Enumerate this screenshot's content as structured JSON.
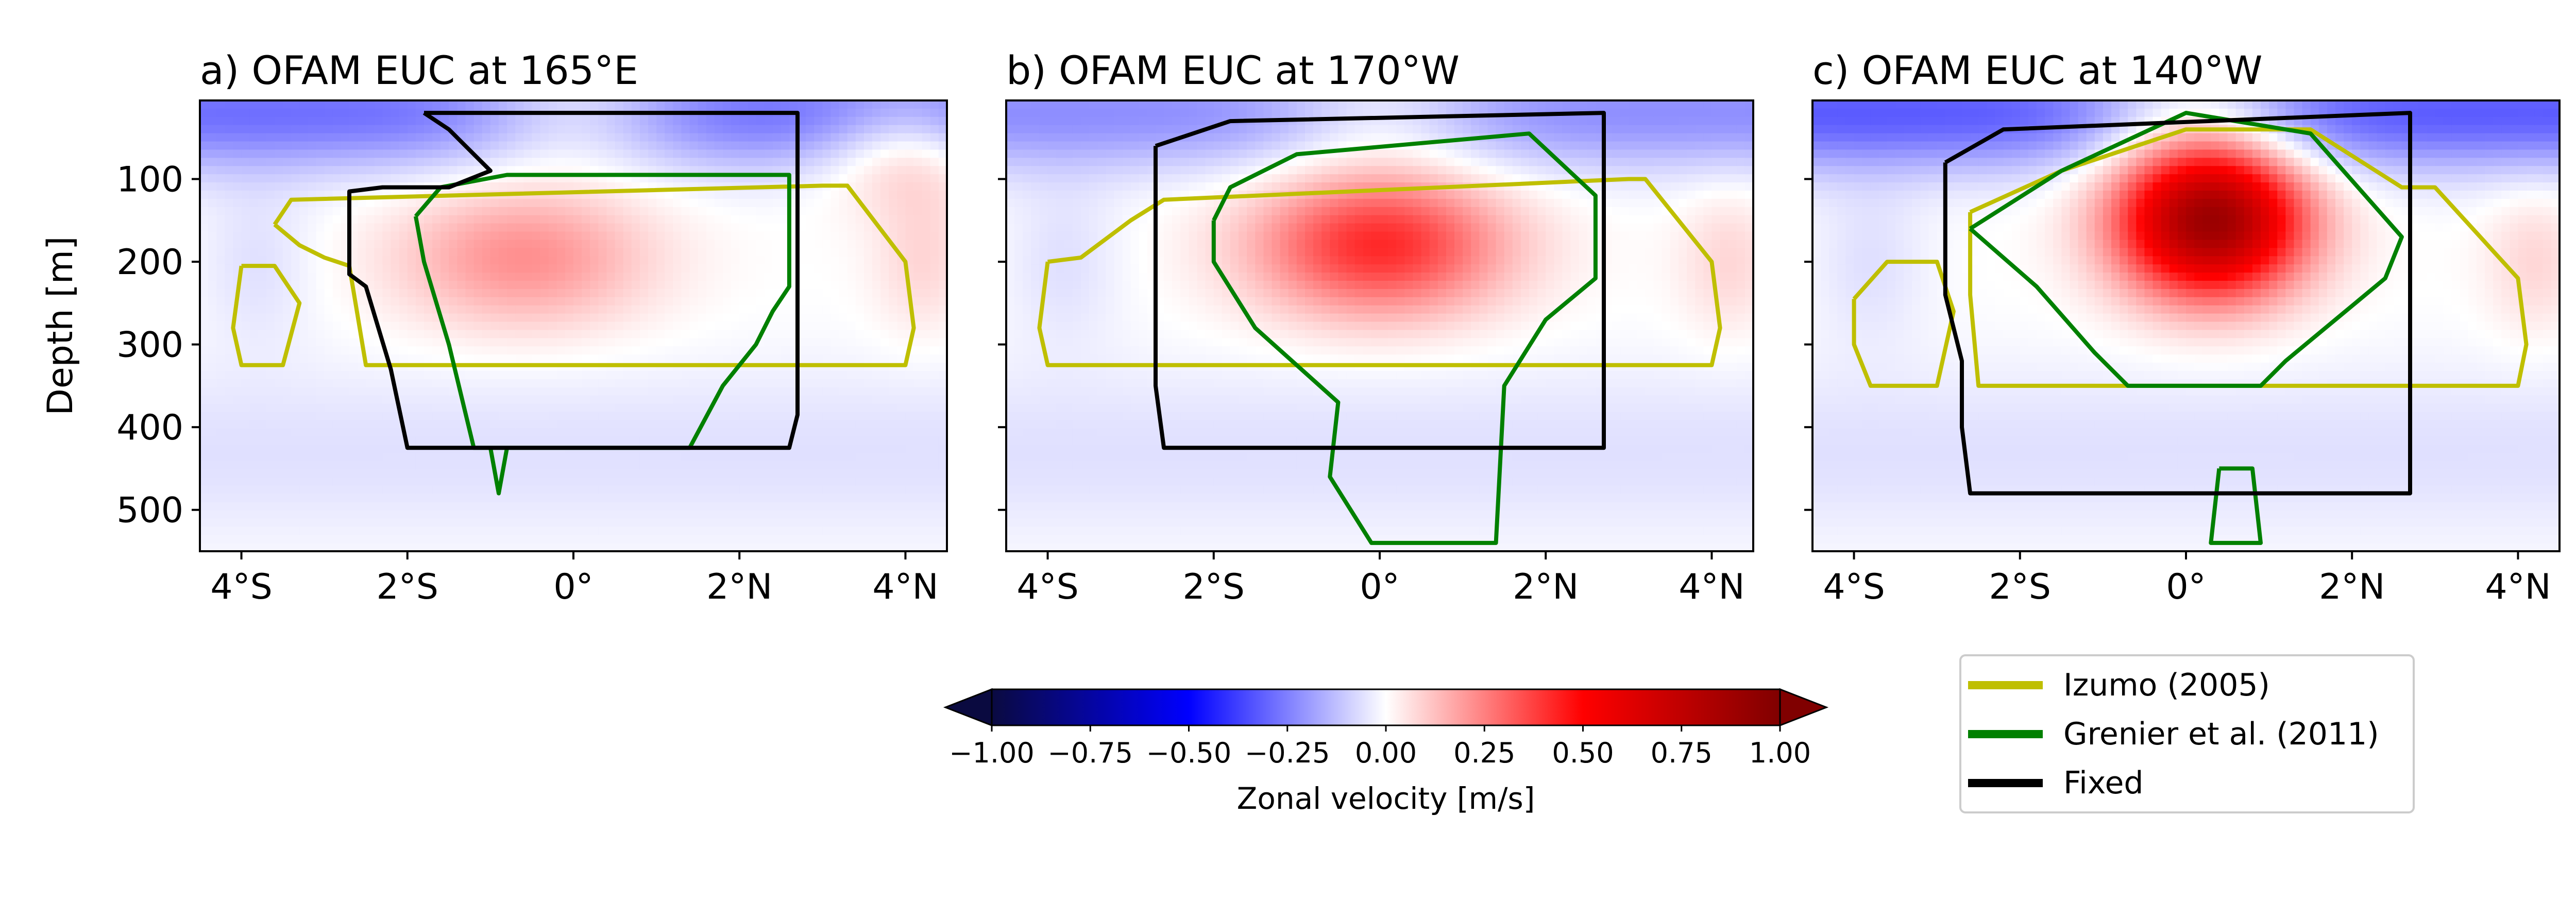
{
  "chart_data": [
    {
      "type": "heatmap",
      "title": "a) OFAM EUC at 165°E",
      "ylabel": "Depth [m]",
      "xlim": [
        -4.5,
        4.5
      ],
      "ylim": [
        550,
        5
      ],
      "xticks": [
        -4,
        -2,
        0,
        2,
        4
      ],
      "xtick_labels": [
        "4°S",
        "2°S",
        "0°",
        "2°N",
        "4°N"
      ],
      "yticks": [
        100,
        200,
        300,
        400,
        500
      ],
      "ytick_labels": [
        "100",
        "200",
        "300",
        "400",
        "500"
      ],
      "core": {
        "lat": -0.6,
        "depth": 195,
        "u_max": 0.22
      },
      "contours": {
        "izumo": [
          [
            -4,
            205
          ],
          [
            -3.6,
            205
          ],
          [
            -3.3,
            250
          ],
          [
            -3.5,
            325
          ],
          [
            -4,
            325
          ],
          [
            -4.1,
            280
          ],
          [
            -4,
            205
          ]
        ],
        "izumo_main": [
          [
            -3.6,
            155
          ],
          [
            -3.4,
            125
          ],
          [
            3,
            108
          ],
          [
            3.3,
            108
          ],
          [
            4,
            200
          ],
          [
            4.1,
            280
          ],
          [
            4,
            325
          ],
          [
            -2.5,
            325
          ],
          [
            -2.7,
            205
          ],
          [
            -3.0,
            195
          ],
          [
            -3.3,
            180
          ],
          [
            -3.6,
            155
          ]
        ],
        "grenier": [
          [
            -1.9,
            145
          ],
          [
            -1.6,
            110
          ],
          [
            -0.8,
            95
          ],
          [
            2.6,
            95
          ],
          [
            2.6,
            230
          ],
          [
            2.4,
            260
          ],
          [
            2.2,
            300
          ],
          [
            1.8,
            350
          ],
          [
            1.4,
            425
          ],
          [
            -1.2,
            425
          ],
          [
            -1.5,
            300
          ],
          [
            -1.8,
            200
          ],
          [
            -1.9,
            145
          ]
        ],
        "grenier_tail": [
          [
            -1.0,
            425
          ],
          [
            -0.9,
            480
          ],
          [
            -0.8,
            425
          ]
        ],
        "fixed": [
          [
            -1.8,
            20
          ],
          [
            2.7,
            20
          ],
          [
            2.7,
            385
          ],
          [
            2.6,
            425
          ],
          [
            -2.0,
            425
          ],
          [
            -2.2,
            330
          ],
          [
            -2.5,
            230
          ],
          [
            -2.7,
            215
          ],
          [
            -2.7,
            115
          ],
          [
            -2.3,
            110
          ],
          [
            -1.5,
            110
          ],
          [
            -1.0,
            90
          ],
          [
            -1.5,
            40
          ],
          [
            -1.8,
            20
          ]
        ]
      }
    },
    {
      "type": "heatmap",
      "title": "b) OFAM EUC at 170°W",
      "xlim": [
        -4.5,
        4.5
      ],
      "ylim": [
        550,
        5
      ],
      "xticks": [
        -4,
        -2,
        0,
        2,
        4
      ],
      "xtick_labels": [
        "4°S",
        "2°S",
        "0°",
        "2°N",
        "4°N"
      ],
      "yticks": [
        100,
        200,
        300,
        400,
        500
      ],
      "core": {
        "lat": 0.0,
        "depth": 180,
        "u_max": 0.42
      },
      "contours": {
        "izumo": [
          [
            -4,
            200
          ],
          [
            -3.6,
            195
          ],
          [
            -3.0,
            150
          ],
          [
            -2.6,
            125
          ],
          [
            3,
            100
          ],
          [
            3.2,
            100
          ],
          [
            4,
            200
          ],
          [
            4.1,
            280
          ],
          [
            4,
            325
          ],
          [
            -4,
            325
          ],
          [
            -4.1,
            280
          ],
          [
            -4,
            200
          ]
        ],
        "grenier": [
          [
            -2.0,
            150
          ],
          [
            -1.8,
            110
          ],
          [
            -1.0,
            70
          ],
          [
            1.8,
            45
          ],
          [
            2.6,
            120
          ],
          [
            2.6,
            220
          ],
          [
            2.0,
            270
          ],
          [
            1.5,
            350
          ],
          [
            1.4,
            540
          ],
          [
            -0.1,
            540
          ],
          [
            -0.6,
            460
          ],
          [
            -0.5,
            370
          ],
          [
            -1.5,
            280
          ],
          [
            -2.0,
            200
          ],
          [
            -2.0,
            150
          ]
        ],
        "fixed": [
          [
            -2.7,
            60
          ],
          [
            -1.8,
            30
          ],
          [
            2.7,
            20
          ],
          [
            2.7,
            425
          ],
          [
            -2.6,
            425
          ],
          [
            -2.7,
            350
          ],
          [
            -2.7,
            60
          ]
        ]
      }
    },
    {
      "type": "heatmap",
      "title": "c) OFAM EUC at 140°W",
      "xlim": [
        -4.5,
        4.5
      ],
      "ylim": [
        550,
        5
      ],
      "xticks": [
        -4,
        -2,
        0,
        2,
        4
      ],
      "xtick_labels": [
        "4°S",
        "2°S",
        "0°",
        "2°N",
        "4°N"
      ],
      "yticks": [
        100,
        200,
        300,
        400,
        500
      ],
      "core": {
        "lat": 0.3,
        "depth": 150,
        "u_max": 0.9
      },
      "contours": {
        "izumo": [
          [
            -4,
            245
          ],
          [
            -3.6,
            200
          ],
          [
            -3.0,
            200
          ],
          [
            -2.8,
            260
          ],
          [
            -3.0,
            350
          ],
          [
            -3.8,
            350
          ],
          [
            -4.0,
            300
          ],
          [
            -4,
            245
          ]
        ],
        "izumo_main": [
          [
            -2.6,
            140
          ],
          [
            -1.5,
            90
          ],
          [
            0,
            40
          ],
          [
            1.5,
            40
          ],
          [
            2.6,
            110
          ],
          [
            3.0,
            110
          ],
          [
            4,
            220
          ],
          [
            4.1,
            300
          ],
          [
            4,
            350
          ],
          [
            -2.5,
            350
          ],
          [
            -2.6,
            240
          ],
          [
            -2.6,
            140
          ]
        ],
        "grenier": [
          [
            -2.6,
            160
          ],
          [
            -1.5,
            90
          ],
          [
            0,
            20
          ],
          [
            1.5,
            45
          ],
          [
            2.6,
            170
          ],
          [
            2.4,
            220
          ],
          [
            1.8,
            270
          ],
          [
            1.2,
            320
          ],
          [
            0.9,
            350
          ],
          [
            -0.7,
            350
          ],
          [
            -1.1,
            310
          ],
          [
            -1.8,
            230
          ],
          [
            -2.6,
            160
          ]
        ],
        "grenier_tail": [
          [
            0.4,
            450
          ],
          [
            0.8,
            450
          ],
          [
            0.9,
            540
          ],
          [
            0.3,
            540
          ],
          [
            0.4,
            450
          ]
        ],
        "fixed": [
          [
            -2.9,
            80
          ],
          [
            -2.2,
            40
          ],
          [
            2.7,
            20
          ],
          [
            2.7,
            320
          ],
          [
            2.7,
            400
          ],
          [
            2.7,
            480
          ],
          [
            -2.6,
            480
          ],
          [
            -2.7,
            400
          ],
          [
            -2.7,
            320
          ],
          [
            -2.9,
            240
          ],
          [
            -2.9,
            80
          ]
        ]
      }
    }
  ],
  "colorbar": {
    "label": "Zonal velocity [m/s]",
    "ticks": [
      -1.0,
      -0.75,
      -0.5,
      -0.25,
      0.0,
      0.25,
      0.5,
      0.75,
      1.0
    ],
    "tick_labels": [
      "−1.00",
      "−0.75",
      "−0.50",
      "−0.25",
      "0.00",
      "0.25",
      "0.50",
      "0.75",
      "1.00"
    ],
    "cmap": [
      "#0a0a40",
      "#0000ff",
      "#ffffff",
      "#ff0000",
      "#800000"
    ]
  },
  "legend": {
    "position": "lower right",
    "entries": [
      {
        "label": "Izumo (2005)",
        "color": "#bfbf00"
      },
      {
        "label": "Grenier et al. (2011)",
        "color": "#008000"
      },
      {
        "label": "Fixed",
        "color": "#000000"
      }
    ]
  }
}
